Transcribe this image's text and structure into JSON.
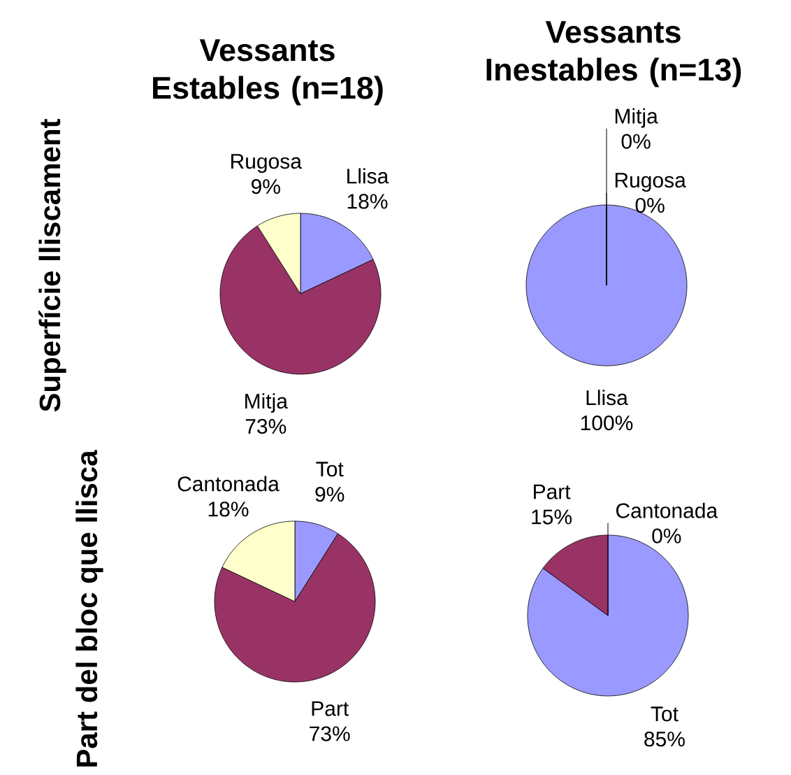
{
  "chart_data": [
    {
      "type": "pie",
      "title": "Vessants Estables (n=18)",
      "ylabel": "Superfície lliscament",
      "categories": [
        "Llisa",
        "Mitja",
        "Rugosa"
      ],
      "values": [
        18,
        73,
        9
      ],
      "value_labels": [
        "18%",
        "73%",
        "9%"
      ],
      "colors": [
        "#9999ff",
        "#993366",
        "#ffffcc"
      ]
    },
    {
      "type": "pie",
      "title": "Vessants Inestables (n=13)",
      "categories": [
        "Llisa",
        "Mitja",
        "Rugosa"
      ],
      "values": [
        100,
        0,
        0
      ],
      "value_labels": [
        "100%",
        "0%",
        "0%"
      ],
      "colors": [
        "#9999ff",
        "#993366",
        "#ffffcc"
      ]
    },
    {
      "type": "pie",
      "ylabel": "Part del bloc que llisca",
      "categories": [
        "Tot",
        "Part",
        "Cantonada"
      ],
      "values": [
        9,
        73,
        18
      ],
      "value_labels": [
        "9%",
        "73%",
        "18%"
      ],
      "colors": [
        "#9999ff",
        "#993366",
        "#ffffcc"
      ]
    },
    {
      "type": "pie",
      "categories": [
        "Tot",
        "Part",
        "Cantonada"
      ],
      "values": [
        85,
        15,
        0
      ],
      "value_labels": [
        "85%",
        "15%",
        "0%"
      ],
      "colors": [
        "#9999ff",
        "#993366",
        "#ffffcc"
      ]
    }
  ]
}
